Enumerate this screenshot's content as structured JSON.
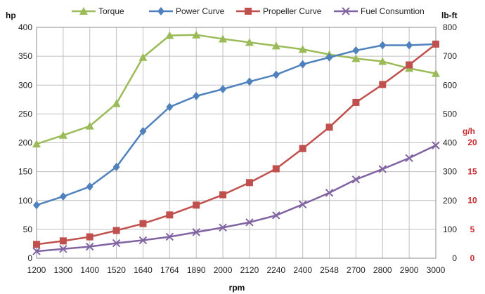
{
  "chart_data": {
    "type": "line",
    "x": [
      "1200",
      "1300",
      "1400",
      "1520",
      "1640",
      "1764",
      "1890",
      "2000",
      "2120",
      "2240",
      "2400",
      "2548",
      "2700",
      "2800",
      "2900",
      "3000"
    ],
    "xlabel": "rpm",
    "y_left_label": "hp",
    "y_left_ylim": [
      0,
      400
    ],
    "y_left_ticks": [
      "0",
      "50",
      "100",
      "150",
      "200",
      "250",
      "300",
      "350",
      "400"
    ],
    "y_right_label": "lb-ft",
    "y_right_ylim": [
      0,
      800
    ],
    "y_right_ticks": [
      "0",
      "100",
      "200",
      "300",
      "400",
      "500",
      "600",
      "700",
      "800"
    ],
    "y_fuel_label": "g/h",
    "y_fuel_ylim": [
      0,
      20
    ],
    "y_fuel_ticks": [
      "0",
      "5",
      "10",
      "15",
      "20"
    ],
    "grid": true,
    "legend_position": "top",
    "series": [
      {
        "name": "Torque",
        "axis": "right",
        "color": "#9bbb59",
        "marker": "triangle",
        "values": [
          396,
          426,
          458,
          536,
          696,
          772,
          774,
          760,
          748,
          736,
          724,
          706,
          692,
          682,
          658,
          640
        ]
      },
      {
        "name": "Power Curve",
        "axis": "left",
        "color": "#4f81bd",
        "marker": "diamond",
        "values": [
          92,
          107,
          124,
          158,
          220,
          262,
          281,
          293,
          306,
          318,
          336,
          348,
          360,
          369,
          369,
          371
        ]
      },
      {
        "name": "Propeller Curve",
        "axis": "left",
        "color": "#c0504d",
        "marker": "square",
        "values": [
          24,
          30,
          37,
          48,
          60,
          75,
          92,
          110,
          131,
          155,
          190,
          227,
          270,
          301,
          335,
          371
        ]
      },
      {
        "name": "Fuel Consumtion",
        "axis": "fuel",
        "color": "#8064a2",
        "marker": "x",
        "values": [
          1.2,
          1.6,
          2.0,
          2.6,
          3.1,
          3.7,
          4.5,
          5.3,
          6.2,
          7.4,
          9.3,
          11.3,
          13.6,
          15.4,
          17.3,
          19.5
        ]
      }
    ]
  }
}
